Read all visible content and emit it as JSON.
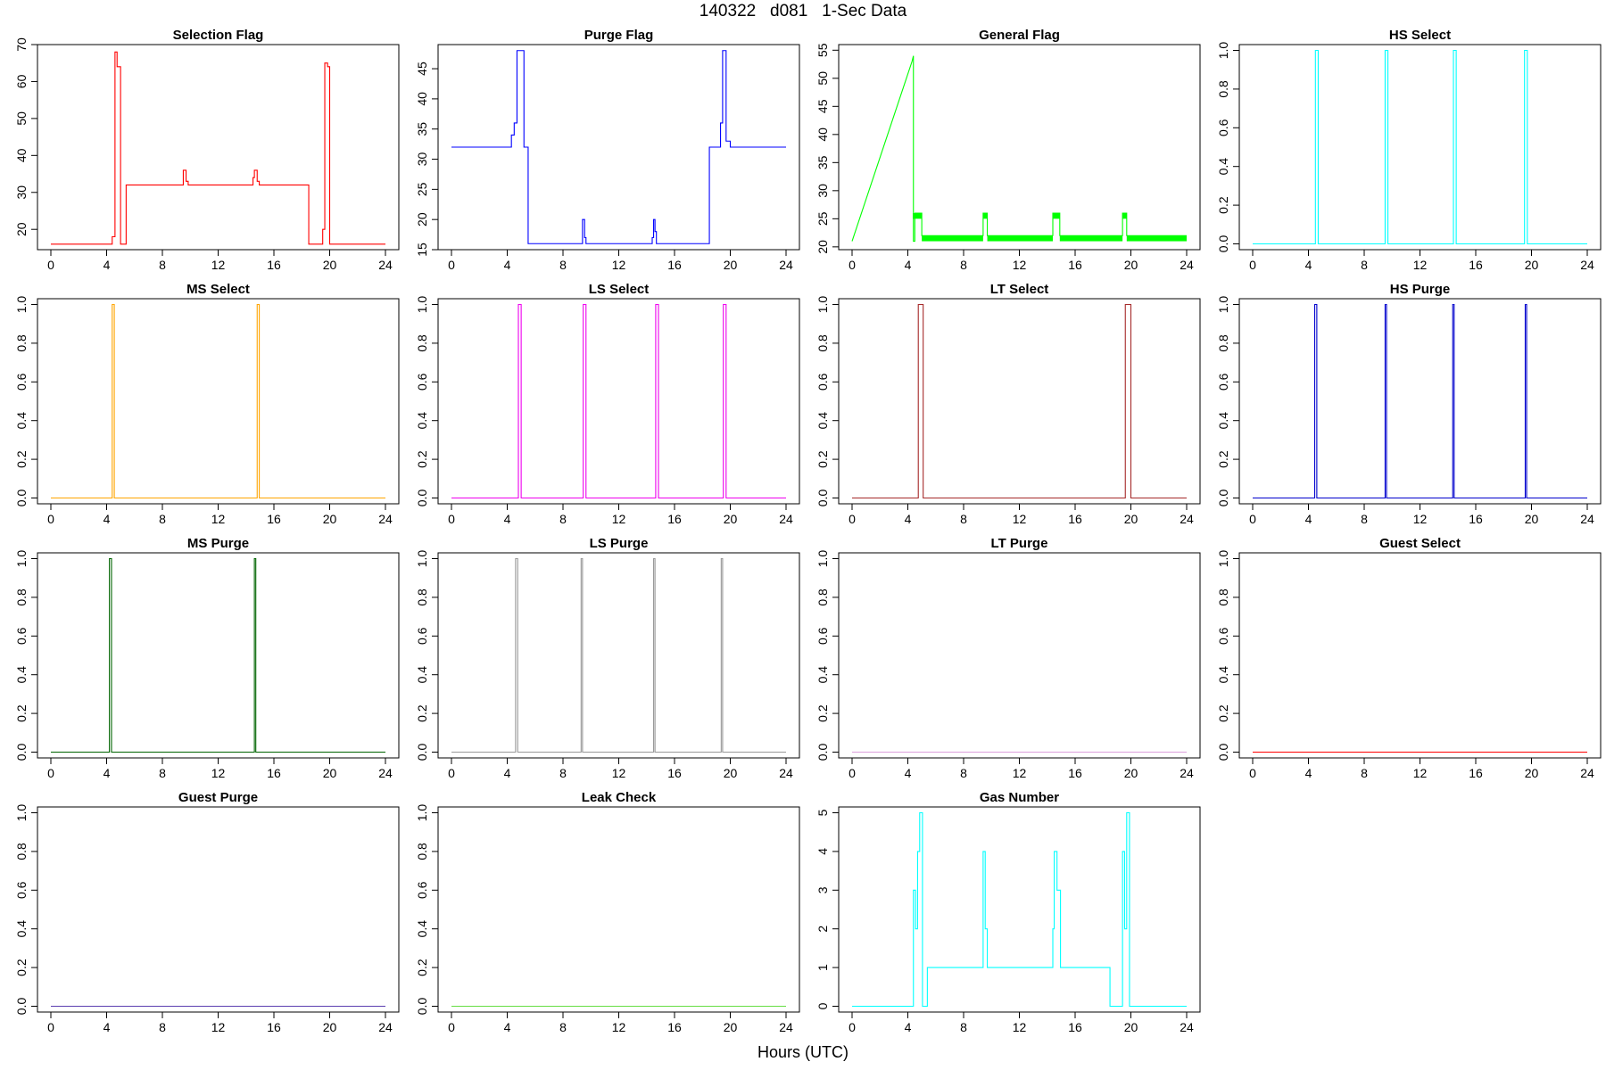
{
  "main_title": "140322   d081   1-Sec Data",
  "x_axis_title": "Hours (UTC)",
  "chart_data": [
    {
      "title": "Selection Flag",
      "type": "line",
      "color": "#ff0000",
      "xlim": [
        0,
        24
      ],
      "xticks": [
        0,
        4,
        8,
        12,
        16,
        20,
        24
      ],
      "ylim": [
        14.5,
        70
      ],
      "yticks": [
        20,
        30,
        40,
        50,
        60,
        70
      ],
      "x": [
        0,
        4.4,
        4.4,
        4.6,
        4.6,
        4.75,
        4.75,
        5.0,
        5.0,
        5.1,
        5.1,
        5.4,
        5.4,
        9.5,
        9.5,
        9.7,
        9.7,
        9.85,
        9.85,
        14.5,
        14.5,
        14.6,
        14.6,
        14.8,
        14.8,
        14.95,
        14.95,
        18.5,
        18.5,
        19.5,
        19.5,
        19.65,
        19.65,
        19.85,
        19.85,
        20.0,
        20.0,
        24
      ],
      "y": [
        16,
        16,
        18,
        18,
        68,
        68,
        64,
        64,
        16,
        16,
        16,
        16,
        32,
        32,
        36,
        36,
        33,
        33,
        32,
        32,
        34,
        34,
        36,
        36,
        33,
        33,
        32,
        32,
        16,
        16,
        20,
        20,
        65,
        65,
        64,
        64,
        16,
        16
      ]
    },
    {
      "title": "Purge Flag",
      "type": "line",
      "color": "#0000ff",
      "xlim": [
        0,
        24
      ],
      "xticks": [
        0,
        4,
        8,
        12,
        16,
        20,
        24
      ],
      "ylim": [
        15,
        49
      ],
      "yticks": [
        15,
        20,
        25,
        30,
        35,
        40,
        45
      ],
      "x": [
        0,
        4.3,
        4.3,
        4.5,
        4.5,
        4.7,
        4.7,
        5.2,
        5.2,
        5.5,
        5.5,
        9.4,
        9.4,
        9.55,
        9.55,
        9.65,
        9.65,
        14.4,
        14.4,
        14.5,
        14.5,
        14.6,
        14.6,
        14.7,
        14.7,
        18.5,
        18.5,
        19.3,
        19.3,
        19.45,
        19.45,
        19.7,
        19.7,
        20.0,
        20.0,
        24
      ],
      "y": [
        32,
        32,
        34,
        34,
        36,
        36,
        48,
        48,
        32,
        32,
        16,
        16,
        20,
        20,
        17,
        17,
        16,
        16,
        17,
        17,
        20,
        20,
        18,
        18,
        16,
        16,
        32,
        32,
        36,
        36,
        48,
        48,
        33,
        33,
        32,
        32
      ]
    },
    {
      "title": "General Flag",
      "type": "line",
      "color": "#00ff00",
      "xlim": [
        0,
        24
      ],
      "xticks": [
        0,
        4,
        8,
        12,
        16,
        20,
        24
      ],
      "ylim": [
        19.5,
        56
      ],
      "yticks": [
        20,
        25,
        30,
        35,
        40,
        45,
        50,
        55
      ],
      "x": [
        0,
        4.3,
        4.4,
        4.4,
        4.5,
        4.5,
        5.0,
        5.0,
        9.4,
        9.4,
        9.7,
        9.7,
        14.4,
        14.4,
        14.9,
        14.9,
        19.4,
        19.4,
        19.7,
        19.7,
        24
      ],
      "y": [
        21,
        53,
        54,
        21,
        21,
        26,
        26,
        22,
        22,
        26,
        26,
        22,
        22,
        26,
        26,
        22,
        22,
        26,
        26,
        22,
        22
      ],
      "bands": [
        {
          "x": [
            4.35,
            5.0
          ],
          "y": [
            25,
            26
          ]
        },
        {
          "x": [
            5.0,
            9.4
          ],
          "y": [
            21,
            22
          ]
        },
        {
          "x": [
            9.4,
            9.7
          ],
          "y": [
            25,
            26
          ]
        },
        {
          "x": [
            9.7,
            14.4
          ],
          "y": [
            21,
            22
          ]
        },
        {
          "x": [
            14.4,
            14.9
          ],
          "y": [
            25,
            26
          ]
        },
        {
          "x": [
            14.9,
            19.4
          ],
          "y": [
            21,
            22
          ]
        },
        {
          "x": [
            19.4,
            19.7
          ],
          "y": [
            25,
            26
          ]
        },
        {
          "x": [
            19.7,
            24
          ],
          "y": [
            21,
            22
          ]
        }
      ]
    },
    {
      "title": "HS Select",
      "type": "line",
      "color": "#00ffff",
      "xlim": [
        0,
        24
      ],
      "xticks": [
        0,
        4,
        8,
        12,
        16,
        20,
        24
      ],
      "ylim": [
        -0.03,
        1.03
      ],
      "yticks": [
        0.0,
        0.2,
        0.4,
        0.6,
        0.8,
        1.0
      ],
      "x": [
        0,
        4.5,
        4.5,
        4.7,
        4.7,
        9.5,
        9.5,
        9.7,
        9.7,
        14.4,
        14.4,
        14.6,
        14.6,
        19.5,
        19.5,
        19.7,
        19.7,
        24
      ],
      "y": [
        0,
        0,
        1,
        1,
        0,
        0,
        1,
        1,
        0,
        0,
        1,
        1,
        0,
        0,
        1,
        1,
        0,
        0
      ]
    },
    {
      "title": "MS Select",
      "type": "line",
      "color": "#ffa500",
      "xlim": [
        0,
        24
      ],
      "xticks": [
        0,
        4,
        8,
        12,
        16,
        20,
        24
      ],
      "ylim": [
        -0.03,
        1.03
      ],
      "yticks": [
        0.0,
        0.2,
        0.4,
        0.6,
        0.8,
        1.0
      ],
      "x": [
        0,
        4.4,
        4.4,
        4.55,
        4.55,
        14.8,
        14.8,
        14.95,
        14.95,
        24
      ],
      "y": [
        0,
        0,
        1,
        1,
        0,
        0,
        1,
        1,
        0,
        0
      ]
    },
    {
      "title": "LS Select",
      "type": "line",
      "color": "#ee00ee",
      "xlim": [
        0,
        24
      ],
      "xticks": [
        0,
        4,
        8,
        12,
        16,
        20,
        24
      ],
      "ylim": [
        -0.03,
        1.03
      ],
      "yticks": [
        0.0,
        0.2,
        0.4,
        0.6,
        0.8,
        1.0
      ],
      "x": [
        0,
        4.8,
        4.8,
        5.0,
        5.0,
        9.45,
        9.45,
        9.65,
        9.65,
        14.65,
        14.65,
        14.85,
        14.85,
        19.5,
        19.5,
        19.7,
        19.7,
        24
      ],
      "y": [
        0,
        0,
        1,
        1,
        0,
        0,
        1,
        1,
        0,
        0,
        1,
        1,
        0,
        0,
        1,
        1,
        0,
        0
      ]
    },
    {
      "title": "LT Select",
      "type": "line",
      "color": "#a52a2a",
      "xlim": [
        0,
        24
      ],
      "xticks": [
        0,
        4,
        8,
        12,
        16,
        20,
        24
      ],
      "ylim": [
        -0.03,
        1.03
      ],
      "yticks": [
        0.0,
        0.2,
        0.4,
        0.6,
        0.8,
        1.0
      ],
      "x": [
        0,
        4.75,
        4.75,
        5.1,
        5.1,
        19.6,
        19.6,
        20.0,
        20.0,
        24
      ],
      "y": [
        0,
        0,
        1,
        1,
        0,
        0,
        1,
        1,
        0,
        0
      ]
    },
    {
      "title": "HS Purge",
      "type": "line",
      "color": "#0000cd",
      "xlim": [
        0,
        24
      ],
      "xticks": [
        0,
        4,
        8,
        12,
        16,
        20,
        24
      ],
      "ylim": [
        -0.03,
        1.03
      ],
      "yticks": [
        0.0,
        0.2,
        0.4,
        0.6,
        0.8,
        1.0
      ],
      "x": [
        0,
        4.45,
        4.45,
        4.6,
        4.6,
        9.5,
        9.5,
        9.6,
        9.6,
        14.35,
        14.35,
        14.45,
        14.45,
        19.55,
        19.55,
        19.65,
        19.65,
        24
      ],
      "y": [
        0,
        0,
        1,
        1,
        0,
        0,
        1,
        1,
        0,
        0,
        1,
        1,
        0,
        0,
        1,
        1,
        0,
        0
      ]
    },
    {
      "title": "MS Purge",
      "type": "line",
      "color": "#006400",
      "xlim": [
        0,
        24
      ],
      "xticks": [
        0,
        4,
        8,
        12,
        16,
        20,
        24
      ],
      "ylim": [
        -0.03,
        1.03
      ],
      "yticks": [
        0.0,
        0.2,
        0.4,
        0.6,
        0.8,
        1.0
      ],
      "x": [
        0,
        4.2,
        4.2,
        4.35,
        4.35,
        14.6,
        14.6,
        14.7,
        14.7,
        24
      ],
      "y": [
        0,
        0,
        1,
        1,
        0,
        0,
        1,
        1,
        0,
        0
      ]
    },
    {
      "title": "LS Purge",
      "type": "line",
      "color": "#999999",
      "xlim": [
        0,
        24
      ],
      "xticks": [
        0,
        4,
        8,
        12,
        16,
        20,
        24
      ],
      "ylim": [
        -0.03,
        1.03
      ],
      "yticks": [
        0.0,
        0.2,
        0.4,
        0.6,
        0.8,
        1.0
      ],
      "x": [
        0,
        4.6,
        4.6,
        4.75,
        4.75,
        9.3,
        9.3,
        9.4,
        9.4,
        14.5,
        14.5,
        14.6,
        14.6,
        19.35,
        19.35,
        19.45,
        19.45,
        24
      ],
      "y": [
        0,
        0,
        1,
        1,
        0,
        0,
        1,
        1,
        0,
        0,
        1,
        1,
        0,
        0,
        1,
        1,
        0,
        0
      ]
    },
    {
      "title": "LT Purge",
      "type": "line",
      "color": "#dda0dd",
      "xlim": [
        0,
        24
      ],
      "xticks": [
        0,
        4,
        8,
        12,
        16,
        20,
        24
      ],
      "ylim": [
        -0.03,
        1.03
      ],
      "yticks": [
        0.0,
        0.2,
        0.4,
        0.6,
        0.8,
        1.0
      ],
      "x": [
        0,
        24
      ],
      "y": [
        0,
        0
      ]
    },
    {
      "title": "Guest Select",
      "type": "line",
      "color": "#ff0000",
      "xlim": [
        0,
        24
      ],
      "xticks": [
        0,
        4,
        8,
        12,
        16,
        20,
        24
      ],
      "ylim": [
        -0.03,
        1.03
      ],
      "yticks": [
        0.0,
        0.2,
        0.4,
        0.6,
        0.8,
        1.0
      ],
      "x": [
        0,
        24
      ],
      "y": [
        0,
        0
      ]
    },
    {
      "title": "Guest Purge",
      "type": "line",
      "color": "#5b3fb0",
      "xlim": [
        0,
        24
      ],
      "xticks": [
        0,
        4,
        8,
        12,
        16,
        20,
        24
      ],
      "ylim": [
        -0.03,
        1.03
      ],
      "yticks": [
        0.0,
        0.2,
        0.4,
        0.6,
        0.8,
        1.0
      ],
      "x": [
        0,
        24
      ],
      "y": [
        0,
        0
      ]
    },
    {
      "title": "Leak Check",
      "type": "line",
      "color": "#66dd44",
      "xlim": [
        0,
        24
      ],
      "xticks": [
        0,
        4,
        8,
        12,
        16,
        20,
        24
      ],
      "ylim": [
        -0.03,
        1.03
      ],
      "yticks": [
        0.0,
        0.2,
        0.4,
        0.6,
        0.8,
        1.0
      ],
      "x": [
        0,
        24
      ],
      "y": [
        0,
        0
      ]
    },
    {
      "title": "Gas Number",
      "type": "line",
      "color": "#00ffff",
      "xlim": [
        0,
        24
      ],
      "xticks": [
        0,
        4,
        8,
        12,
        16,
        20,
        24
      ],
      "ylim": [
        -0.15,
        5.15
      ],
      "yticks": [
        0,
        1,
        2,
        3,
        4,
        5
      ],
      "x": [
        0,
        4.4,
        4.4,
        4.55,
        4.55,
        4.7,
        4.7,
        4.85,
        4.85,
        5.05,
        5.05,
        5.4,
        5.4,
        9.4,
        9.4,
        9.55,
        9.55,
        9.7,
        9.7,
        14.4,
        14.4,
        14.5,
        14.5,
        14.7,
        14.7,
        14.95,
        14.95,
        18.5,
        18.5,
        19.4,
        19.4,
        19.55,
        19.55,
        19.7,
        19.7,
        19.9,
        19.9,
        24
      ],
      "y": [
        0,
        0,
        3,
        3,
        2,
        2,
        4,
        4,
        5,
        5,
        0,
        0,
        1,
        1,
        4,
        4,
        2,
        2,
        1,
        1,
        2,
        2,
        4,
        4,
        3,
        3,
        1,
        1,
        0,
        0,
        4,
        4,
        2,
        2,
        5,
        5,
        0,
        0
      ]
    }
  ]
}
